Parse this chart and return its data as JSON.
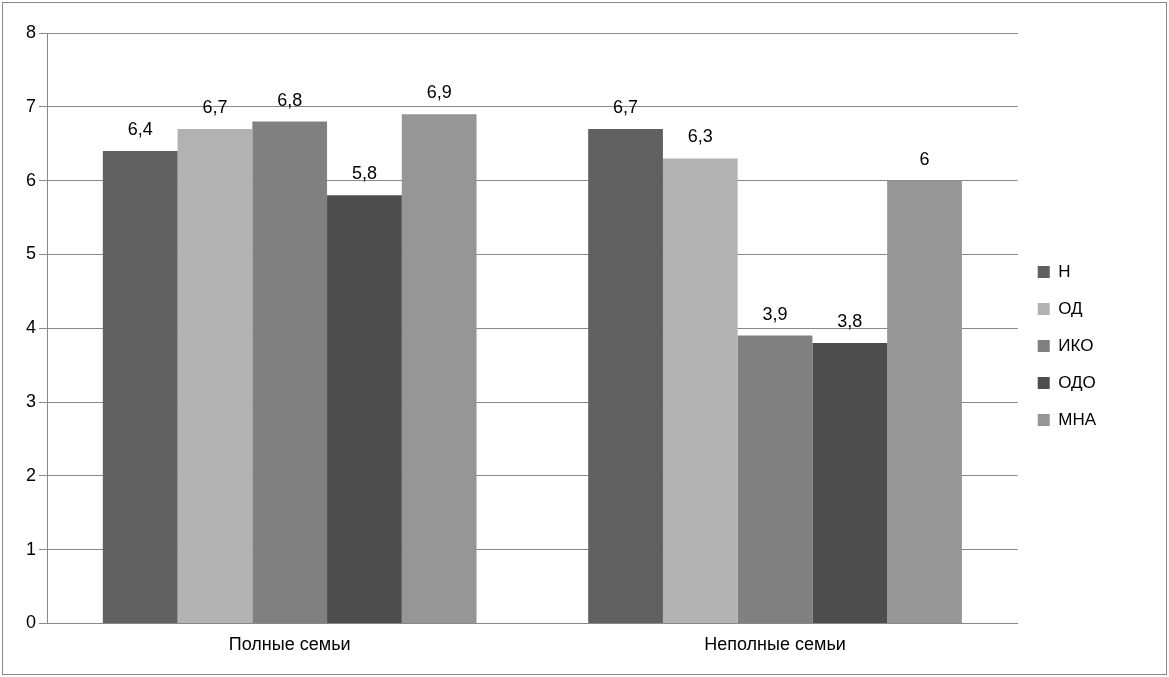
{
  "chart_data": {
    "type": "bar",
    "categories": [
      "Полные семьи",
      "Неполные семьи"
    ],
    "series": [
      {
        "name": "Н",
        "color": "#606060",
        "values": [
          6.4,
          6.7
        ],
        "value_labels": [
          "6,4",
          "6,7"
        ]
      },
      {
        "name": "ОД",
        "color": "#b2b2b2",
        "values": [
          6.7,
          6.3
        ],
        "value_labels": [
          "6,7",
          "6,3"
        ]
      },
      {
        "name": "ИКО",
        "color": "#808080",
        "values": [
          6.8,
          3.9
        ],
        "value_labels": [
          "6,8",
          "3,9"
        ]
      },
      {
        "name": "ОДО",
        "color": "#4d4d4d",
        "values": [
          5.8,
          3.8
        ],
        "value_labels": [
          "5,8",
          "3,8"
        ]
      },
      {
        "name": "МНА",
        "color": "#969696",
        "values": [
          6.9,
          6
        ],
        "value_labels": [
          "6,9",
          "6"
        ]
      }
    ],
    "ylim": [
      0,
      8
    ],
    "yticks": [
      0,
      1,
      2,
      3,
      4,
      5,
      6,
      7,
      8
    ],
    "grid": "y",
    "legend": "right"
  }
}
